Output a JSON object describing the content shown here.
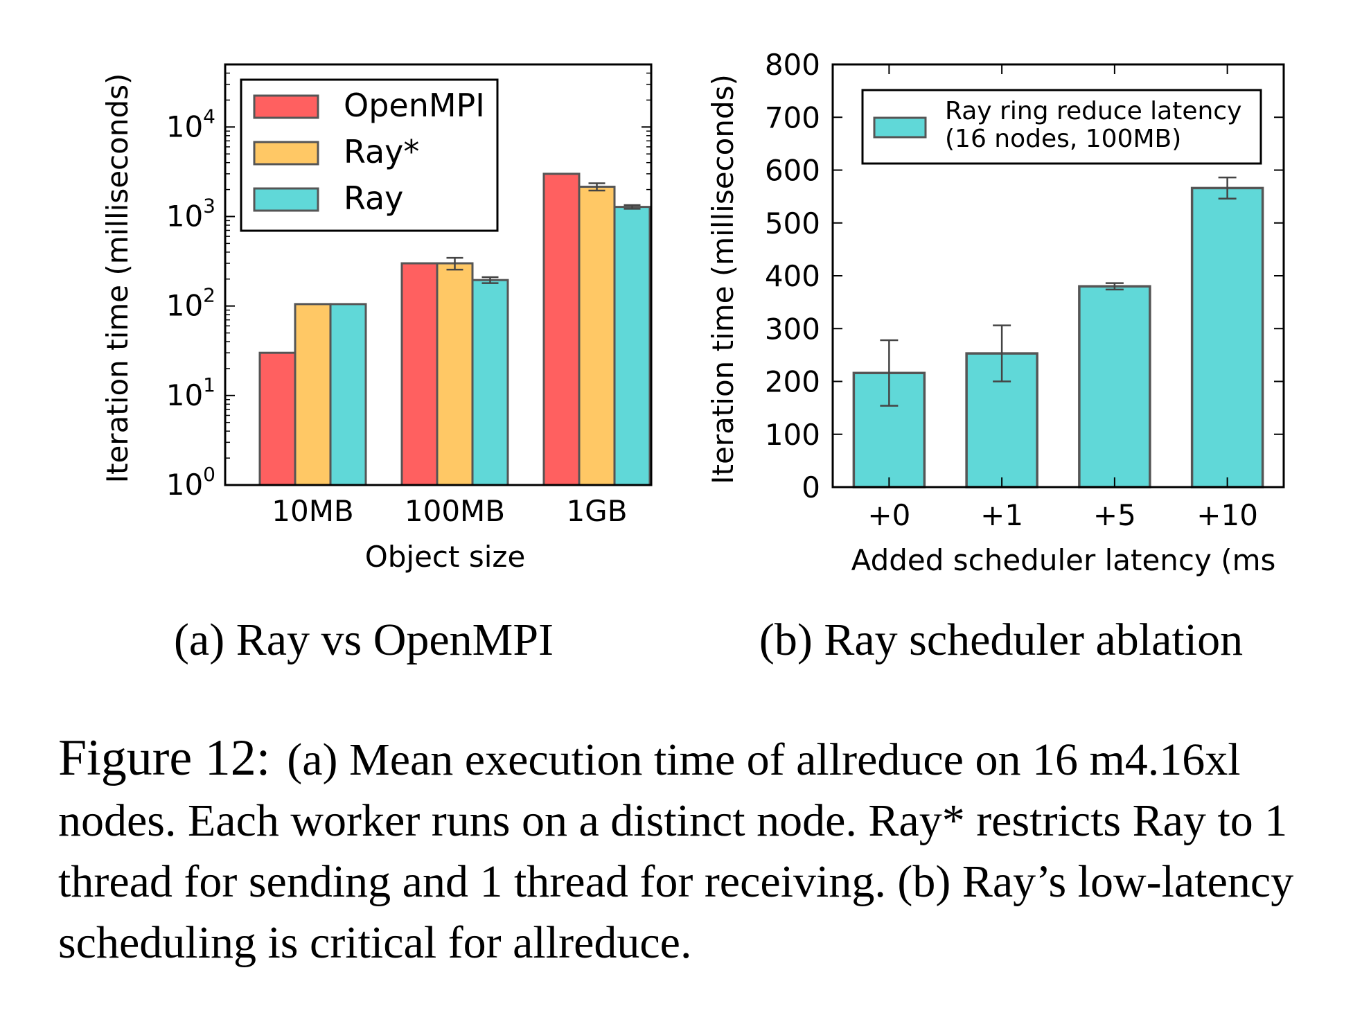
{
  "chart_data": [
    {
      "type": "bar",
      "yscale": "log",
      "xlabel": "Object size",
      "ylabel": "Iteration time (milliseconds)",
      "ylim": [
        1,
        50000
      ],
      "yticks": [
        {
          "value": 1,
          "base": "10",
          "exp": "0"
        },
        {
          "value": 10,
          "base": "10",
          "exp": "1"
        },
        {
          "value": 100,
          "base": "10",
          "exp": "2"
        },
        {
          "value": 1000,
          "base": "10",
          "exp": "3"
        },
        {
          "value": 10000,
          "base": "10",
          "exp": "4"
        }
      ],
      "categories": [
        "10MB",
        "100MB",
        "1GB"
      ],
      "series": [
        {
          "name": "OpenMPI",
          "color": "#ff6060",
          "values": [
            30,
            300,
            3000
          ],
          "err": [
            0,
            0,
            0
          ]
        },
        {
          "name": "Ray*",
          "color": "#ffc865",
          "values": [
            105,
            300,
            2150
          ],
          "err": [
            0,
            45,
            200
          ]
        },
        {
          "name": "Ray",
          "color": "#60d8d8",
          "values": [
            105,
            195,
            1280
          ],
          "err": [
            0,
            15,
            60
          ]
        }
      ],
      "legend": "top-left",
      "sub_caption": "(a) Ray vs OpenMPI"
    },
    {
      "type": "bar",
      "xlabel": "Added scheduler latency (ms",
      "ylabel": "Iteration time (milliseconds)",
      "ylim": [
        0,
        800
      ],
      "yticks": [
        0,
        100,
        200,
        300,
        400,
        500,
        600,
        700,
        800
      ],
      "categories": [
        "+0",
        "+1",
        "+5",
        "+10"
      ],
      "series": [
        {
          "name_lines": [
            "Ray ring reduce latency",
            "(16 nodes, 100MB)"
          ],
          "color": "#60d8d8",
          "values": [
            216,
            253,
            380,
            566
          ],
          "err": [
            62,
            53,
            6,
            20
          ]
        }
      ],
      "legend": "top",
      "sub_caption": "(b) Ray scheduler ablation"
    }
  ],
  "caption": {
    "label": "Figure 12:",
    "text": "(a) Mean execution time of allreduce on 16 m4.16xl nodes. Each worker runs on a distinct node. Ray* restricts Ray to 1 thread for sending and 1 thread for receiving. (b) Ray’s low-latency scheduling is critical for allreduce."
  }
}
